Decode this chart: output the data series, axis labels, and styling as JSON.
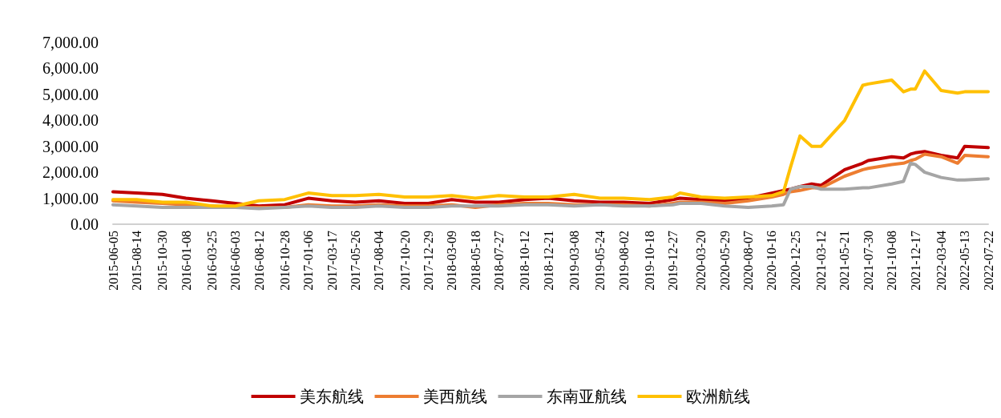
{
  "chart_data": {
    "type": "line",
    "x": [
      "2015-06-05",
      "2015-08-14",
      "2015-10-30",
      "2016-01-08",
      "2016-03-25",
      "2016-06-03",
      "2016-08-12",
      "2016-10-28",
      "2017-01-06",
      "2017-03-17",
      "2017-05-26",
      "2017-08-04",
      "2017-10-20",
      "2017-12-29",
      "2018-03-09",
      "2018-05-18",
      "2018-07-27",
      "2018-10-12",
      "2018-12-21",
      "2019-03-08",
      "2019-05-24",
      "2019-08-02",
      "2019-10-18",
      "2019-12-27",
      "2020-01-17",
      "2020-03-20",
      "2020-05-29",
      "2020-08-07",
      "2020-10-16",
      "2020-11-20",
      "2020-12-11",
      "2021-01-08",
      "2021-02-12",
      "2021-03-12",
      "2021-05-21",
      "2021-07-14",
      "2021-07-30",
      "2021-10-08",
      "2021-11-12",
      "2021-12-03",
      "2021-12-17",
      "2022-01-14",
      "2022-03-04",
      "2022-04-22",
      "2022-05-13",
      "2022-07-22"
    ],
    "series": [
      {
        "name": "美东航线",
        "color": "#c00000",
        "values": [
          1250,
          1200,
          1150,
          1000,
          900,
          800,
          700,
          750,
          1000,
          900,
          850,
          900,
          800,
          800,
          950,
          850,
          850,
          950,
          1000,
          900,
          850,
          850,
          800,
          950,
          1000,
          950,
          900,
          1000,
          1200,
          1300,
          1350,
          1450,
          1550,
          1500,
          2100,
          2350,
          2450,
          2600,
          2550,
          2700,
          2750,
          2800,
          2650,
          2550,
          3000,
          2950
        ]
      },
      {
        "name": "美西航线",
        "color": "#ed7d31",
        "values": [
          900,
          850,
          800,
          750,
          700,
          650,
          650,
          650,
          750,
          700,
          700,
          750,
          700,
          700,
          750,
          650,
          750,
          800,
          800,
          750,
          750,
          750,
          700,
          800,
          850,
          850,
          800,
          900,
          1050,
          1150,
          1250,
          1300,
          1400,
          1400,
          1850,
          2100,
          2150,
          2300,
          2350,
          2450,
          2500,
          2700,
          2600,
          2350,
          2650,
          2600
        ]
      },
      {
        "name": "东南亚航线",
        "color": "#a5a5a5",
        "values": [
          750,
          700,
          650,
          650,
          650,
          650,
          600,
          650,
          700,
          650,
          650,
          700,
          650,
          650,
          700,
          700,
          700,
          750,
          750,
          700,
          750,
          700,
          700,
          750,
          800,
          800,
          700,
          650,
          700,
          750,
          1350,
          1450,
          1450,
          1350,
          1350,
          1400,
          1400,
          1550,
          1650,
          2350,
          2300,
          2000,
          1800,
          1700,
          1700,
          1750
        ]
      },
      {
        "name": "欧洲航线",
        "color": "#ffc000",
        "values": [
          950,
          950,
          850,
          850,
          700,
          700,
          900,
          950,
          1200,
          1100,
          1100,
          1150,
          1050,
          1050,
          1100,
          1000,
          1100,
          1050,
          1050,
          1150,
          1000,
          1000,
          950,
          1050,
          1200,
          1050,
          1000,
          1050,
          1100,
          1250,
          2200,
          3400,
          3000,
          3000,
          4000,
          5350,
          5400,
          5550,
          5100,
          5200,
          5200,
          5900,
          5150,
          5050,
          5100,
          5100
        ]
      }
    ],
    "xlim": [
      "2015-06-05",
      "2022-07-22"
    ],
    "xticks": [
      "2015-06-05",
      "2015-08-14",
      "2015-10-30",
      "2016-01-08",
      "2016-03-25",
      "2016-06-03",
      "2016-08-12",
      "2016-10-28",
      "2017-01-06",
      "2017-03-17",
      "2017-05-26",
      "2017-08-04",
      "2017-10-20",
      "2017-12-29",
      "2018-03-09",
      "2018-05-18",
      "2018-07-27",
      "2018-10-12",
      "2018-12-21",
      "2019-03-08",
      "2019-05-24",
      "2019-08-02",
      "2019-10-18",
      "2019-12-27",
      "2020-03-20",
      "2020-05-29",
      "2020-08-07",
      "2020-10-16",
      "2020-12-25",
      "2021-03-12",
      "2021-05-21",
      "2021-07-30",
      "2021-10-08",
      "2021-12-17",
      "2022-03-04",
      "2022-05-13",
      "2022-07-22"
    ],
    "ylim": [
      0,
      7000
    ],
    "yticks": [
      {
        "value": 0,
        "label": "0.00"
      },
      {
        "value": 1000,
        "label": "1,000.00"
      },
      {
        "value": 2000,
        "label": "2,000.00"
      },
      {
        "value": 3000,
        "label": "3,000.00"
      },
      {
        "value": 4000,
        "label": "4,000.00"
      },
      {
        "value": 5000,
        "label": "5,000.00"
      },
      {
        "value": 6000,
        "label": "6,000.00"
      },
      {
        "value": 7000,
        "label": "7,000.00"
      }
    ],
    "legend": "bottom"
  }
}
